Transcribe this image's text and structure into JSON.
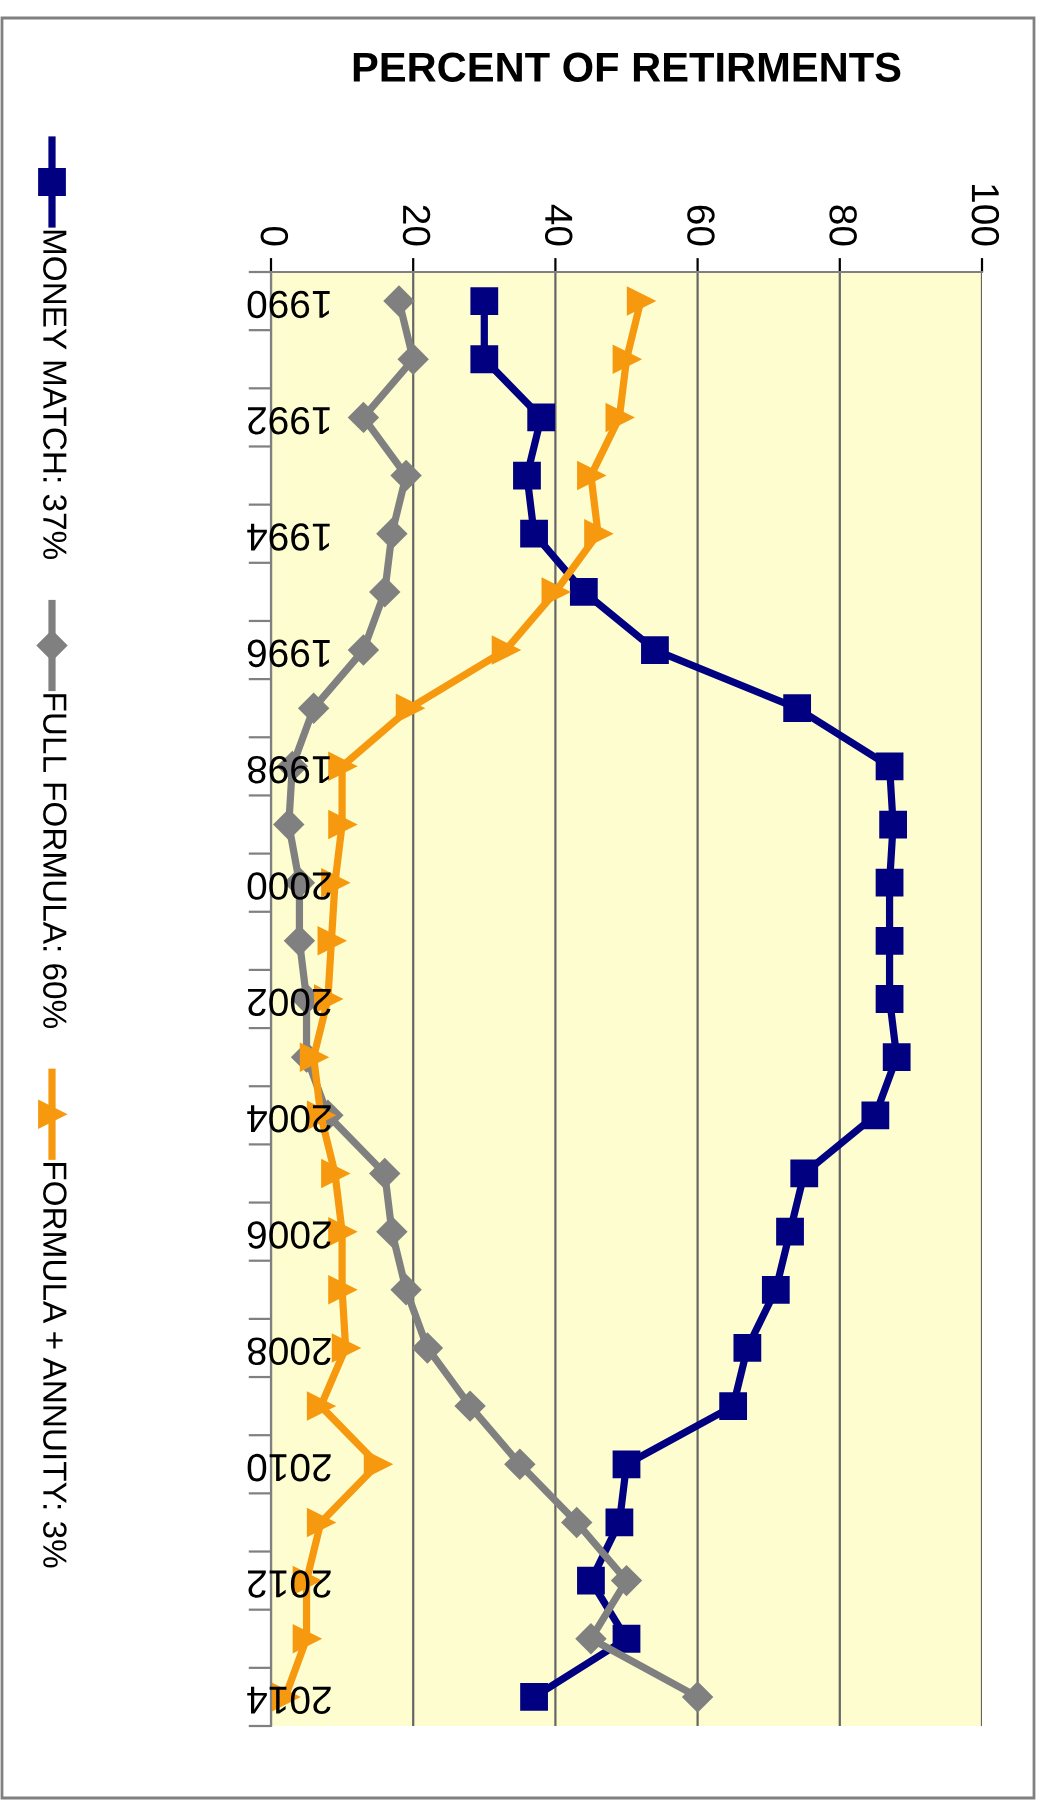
{
  "chart_data": {
    "type": "line",
    "orientation": "horizontal",
    "xlabel": "PERCENT OF RETIRMENTS",
    "categories": [
      "1990",
      null,
      "1992",
      null,
      "1994",
      null,
      "1996",
      null,
      "1998",
      null,
      "2000",
      null,
      "2002",
      null,
      "2004",
      null,
      "2006",
      null,
      "2008",
      null,
      "2010",
      null,
      "2012",
      null,
      "2014"
    ],
    "series": [
      {
        "name": "MONEY MATCH: 37%",
        "color": "#000080",
        "marker": "square",
        "values": [
          30,
          30,
          38,
          36,
          37,
          44,
          54,
          74,
          87,
          87.5,
          87,
          87,
          87,
          88,
          85,
          75,
          73,
          71,
          67,
          65,
          50,
          49,
          45,
          50,
          37
        ]
      },
      {
        "name": "FULL FORMULA: 60%",
        "color": "#808080",
        "marker": "diamond",
        "values": [
          18,
          20,
          13,
          19,
          17,
          16,
          13,
          6,
          3,
          2.5,
          4,
          4,
          5,
          5,
          8,
          16,
          17,
          19,
          22,
          28,
          35,
          43,
          50,
          45,
          60
        ]
      },
      {
        "name": "FORMULA + ANNUITY: 3%",
        "color": "#f7990f",
        "marker": "triangle",
        "values": [
          52,
          50,
          49,
          45,
          46,
          40,
          33,
          19.5,
          10,
          10,
          9,
          8.5,
          8,
          6,
          7,
          9,
          10,
          10,
          10.5,
          7,
          15,
          7,
          5,
          5,
          2
        ]
      }
    ],
    "xlim": [
      0,
      100
    ],
    "xticks": [
      0,
      20,
      40,
      60,
      80,
      100
    ],
    "grid": "x",
    "legend": "left",
    "line_style": "solid"
  }
}
